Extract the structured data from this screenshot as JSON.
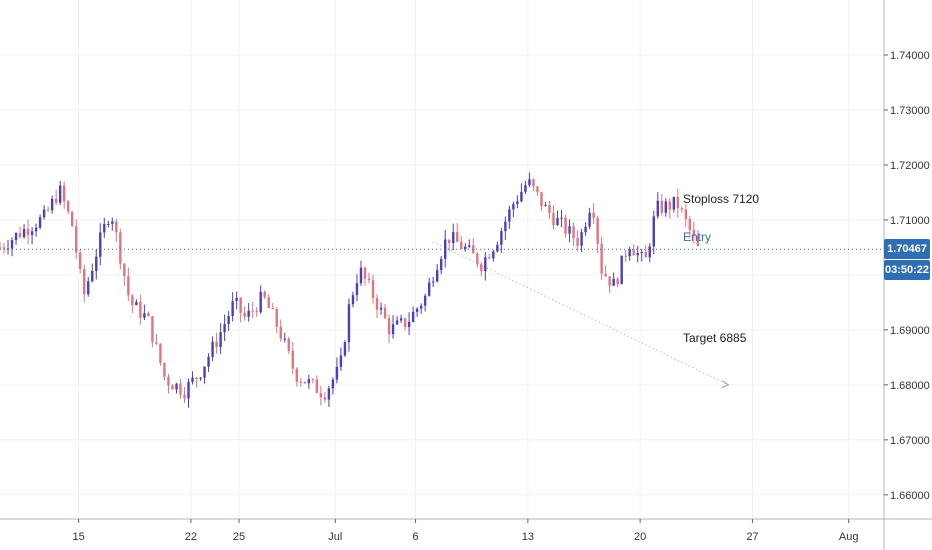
{
  "chart_data": {
    "type": "candlestick",
    "y_ticks": [
      "1.66000",
      "1.67000",
      "1.68000",
      "1.69000",
      "1.70000",
      "1.71000",
      "1.72000",
      "1.73000",
      "1.74000"
    ],
    "x_ticks": [
      {
        "label": "15",
        "day": 15
      },
      {
        "label": "22",
        "day": 22
      },
      {
        "label": "25",
        "day": 25
      },
      {
        "label": "Jul",
        "day": 31
      },
      {
        "label": "6",
        "day": 36
      },
      {
        "label": "13",
        "day": 43
      },
      {
        "label": "20",
        "day": 50
      },
      {
        "label": "27",
        "day": 57
      },
      {
        "label": "Aug",
        "day": 63
      }
    ],
    "ylim": [
      1.6556,
      1.75
    ],
    "xlim": [
      10.1,
      65.2
    ],
    "grid": true,
    "colors": {
      "up": "#4a3fc3",
      "down": "#e0757e",
      "grid": "#f0f1f4",
      "axis": "#606060",
      "current": "#2f6db5"
    },
    "current_price": {
      "label": "1.70467",
      "value": 1.70467
    },
    "countdown": "03:50:22",
    "annotations": [
      {
        "text": "Stoploss 7120",
        "color": "#222222"
      },
      {
        "text": "Entry",
        "color": "#2f6db5"
      },
      {
        "text": "Target 6885",
        "color": "#222222"
      }
    ],
    "trendline": {
      "from": [
        37.1,
        1.706
      ],
      "to": [
        55.5,
        1.68
      ]
    },
    "anchors": [
      [
        10.1,
        1.705
      ],
      [
        11.5,
        1.708
      ],
      [
        12.9,
        1.7105
      ],
      [
        13.8,
        1.7155
      ],
      [
        14.6,
        1.709
      ],
      [
        15.3,
        1.696
      ],
      [
        16.2,
        1.705
      ],
      [
        17.0,
        1.712
      ],
      [
        18.2,
        1.695
      ],
      [
        19.3,
        1.692
      ],
      [
        20.4,
        1.681
      ],
      [
        21.6,
        1.679
      ],
      [
        22.5,
        1.682
      ],
      [
        23.6,
        1.688
      ],
      [
        24.7,
        1.695
      ],
      [
        25.4,
        1.692
      ],
      [
        26.5,
        1.696
      ],
      [
        27.5,
        1.69
      ],
      [
        28.5,
        1.682
      ],
      [
        29.5,
        1.68
      ],
      [
        30.3,
        1.6785
      ],
      [
        31.3,
        1.683
      ],
      [
        31.9,
        1.695
      ],
      [
        32.5,
        1.701
      ],
      [
        33.4,
        1.696
      ],
      [
        34.4,
        1.69
      ],
      [
        35.5,
        1.6915
      ],
      [
        36.6,
        1.696
      ],
      [
        37.3,
        1.702
      ],
      [
        38.0,
        1.707
      ],
      [
        39.0,
        1.705
      ],
      [
        40.1,
        1.702
      ],
      [
        41.0,
        1.706
      ],
      [
        42.1,
        1.713
      ],
      [
        43.0,
        1.717
      ],
      [
        44.1,
        1.712
      ],
      [
        45.1,
        1.709
      ],
      [
        46.2,
        1.706
      ],
      [
        47.0,
        1.714
      ],
      [
        47.6,
        1.701
      ],
      [
        48.4,
        1.698
      ],
      [
        49.3,
        1.706
      ],
      [
        50.3,
        1.702
      ],
      [
        51.0,
        1.712
      ],
      [
        52.3,
        1.713
      ],
      [
        53.1,
        1.708
      ],
      [
        53.6,
        1.7047
      ]
    ]
  }
}
